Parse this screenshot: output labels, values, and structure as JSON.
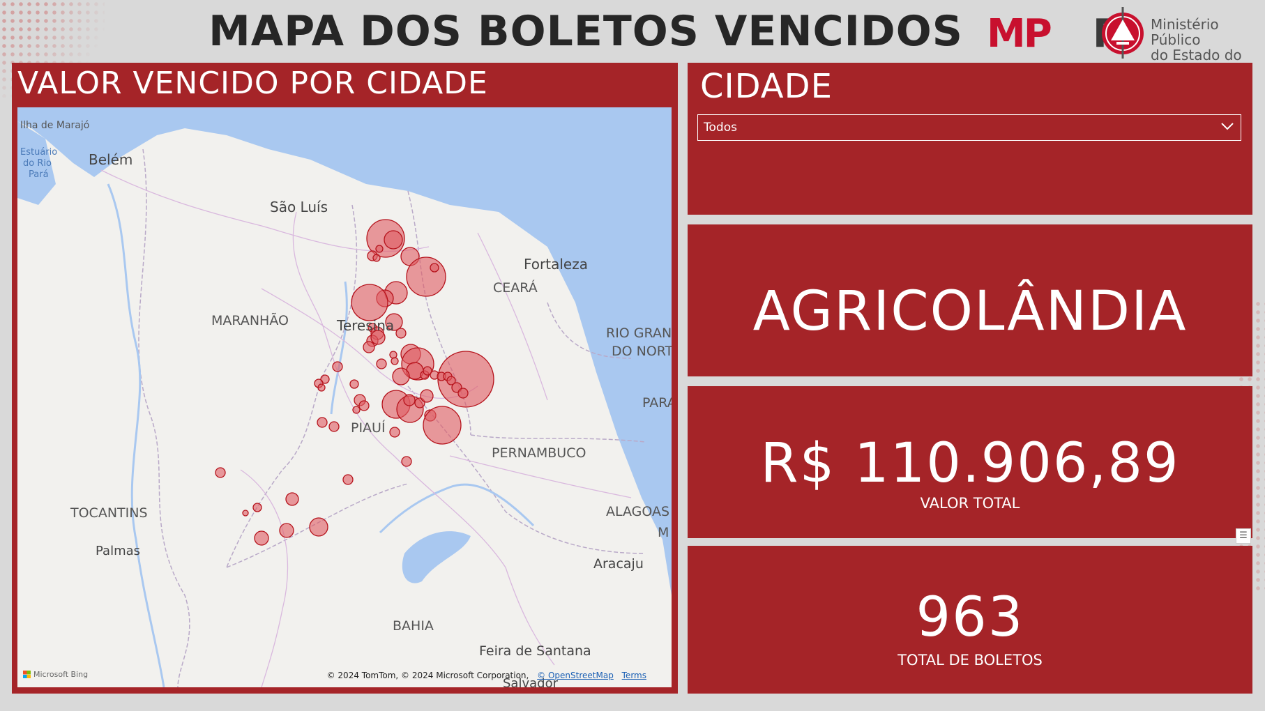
{
  "page": {
    "title": "MAPA DOS BOLETOS VENCIDOS"
  },
  "logo": {
    "mark": "MPPI",
    "mark_mp": "MP",
    "mark_pi": "PI",
    "org_line1": "Ministério Público",
    "org_line2": "do Estado do Piauí",
    "seal_icon": "seal-icon"
  },
  "map_panel": {
    "title": "VALOR VENCIDO POR CIDADE",
    "bubble_color": "#e05b62",
    "labels": {
      "belem": "Belém",
      "marajo": "Ilha de Marajó",
      "estuario1": "Estuário",
      "estuario2": "do Rio",
      "estuario3": "Pará",
      "saoluis": "São Luís",
      "fortaleza": "Fortaleza",
      "ceara": "CEARÁ",
      "maranhao": "MARANHÃO",
      "teresina": "Teresina",
      "rn1": "RIO GRAN",
      "rn2": "DO NORT",
      "para": "PARA",
      "piaui": "PIAUÍ",
      "pernambuco": "PERNAMBUCO",
      "tocantins": "TOCANTINS",
      "palmas": "Palmas",
      "alagoas": "ALAGOAS",
      "m": "M",
      "aracaju": "Aracaju",
      "bahia": "BAHIA",
      "feira": "Feira de Santana",
      "salvador": "Salvador"
    },
    "attribution": "© 2024 TomTom, © 2024 Microsoft Corporation,",
    "osm_link": "© OpenStreetMap",
    "terms_link": "Terms",
    "bing": "Microsoft Bing"
  },
  "slicer": {
    "title": "CIDADE",
    "selected": "Todos",
    "chevron_icon": "chevron-down-icon"
  },
  "card_city": {
    "value": "AGRICOLÂNDIA"
  },
  "card_total": {
    "value": "R$ 110.906,89",
    "label": "VALOR TOTAL"
  },
  "card_count": {
    "value": "963",
    "label": "TOTAL DE BOLETOS"
  },
  "filter_icon": "filter-icon"
}
